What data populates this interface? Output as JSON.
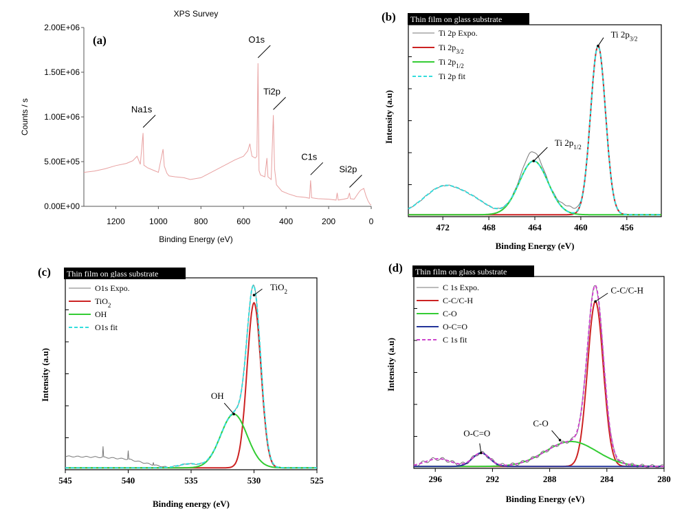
{
  "chart_data": [
    {
      "id": "a",
      "type": "line",
      "panel_label": "(a)",
      "title": "XPS Survey",
      "xlabel": "Binding Energy (eV)",
      "ylabel": "Counts / s",
      "xlim": [
        1350,
        0
      ],
      "ylim": [
        0,
        2000000
      ],
      "x_ticks": [
        1200,
        1000,
        800,
        600,
        400,
        200,
        0
      ],
      "y_ticks": [
        0,
        500000,
        1000000,
        1500000,
        2000000
      ],
      "y_tick_labels": [
        "0.00E+00",
        "5.00E+05",
        "1.00E+06",
        "1.50E+06",
        "2.00E+06"
      ],
      "series_color": "#e8a0a0",
      "series": [
        {
          "name": "Survey",
          "points": [
            [
              1350,
              380000
            ],
            [
              1300,
              395000
            ],
            [
              1250,
              420000
            ],
            [
              1200,
              455000
            ],
            [
              1150,
              480000
            ],
            [
              1120,
              510000
            ],
            [
              1100,
              560000
            ],
            [
              1085,
              470000
            ],
            [
              1072,
              820000
            ],
            [
              1068,
              460000
            ],
            [
              1050,
              430000
            ],
            [
              1020,
              400000
            ],
            [
              1000,
              380000
            ],
            [
              978,
              640000
            ],
            [
              972,
              450000
            ],
            [
              960,
              370000
            ],
            [
              950,
              340000
            ],
            [
              920,
              330000
            ],
            [
              880,
              320000
            ],
            [
              850,
              300000
            ],
            [
              800,
              320000
            ],
            [
              760,
              370000
            ],
            [
              720,
              420000
            ],
            [
              680,
              470000
            ],
            [
              640,
              520000
            ],
            [
              600,
              560000
            ],
            [
              580,
              620000
            ],
            [
              570,
              700000
            ],
            [
              565,
              620000
            ],
            [
              560,
              560000
            ],
            [
              545,
              540000
            ],
            [
              537,
              560000
            ],
            [
              532,
              1600000
            ],
            [
              527,
              400000
            ],
            [
              520,
              350000
            ],
            [
              500,
              330000
            ],
            [
              490,
              540000
            ],
            [
              485,
              330000
            ],
            [
              470,
              300000
            ],
            [
              460,
              1020000
            ],
            [
              454,
              420000
            ],
            [
              445,
              240000
            ],
            [
              420,
              170000
            ],
            [
              390,
              140000
            ],
            [
              350,
              110000
            ],
            [
              310,
              100000
            ],
            [
              290,
              90000
            ],
            [
              285,
              290000
            ],
            [
              280,
              95000
            ],
            [
              250,
              85000
            ],
            [
              200,
              80000
            ],
            [
              165,
              70000
            ],
            [
              160,
              150000
            ],
            [
              155,
              70000
            ],
            [
              130,
              80000
            ],
            [
              110,
              90000
            ],
            [
              102,
              150000
            ],
            [
              98,
              85000
            ],
            [
              80,
              80000
            ],
            [
              60,
              150000
            ],
            [
              50,
              180000
            ],
            [
              35,
              200000
            ],
            [
              25,
              120000
            ],
            [
              15,
              60000
            ],
            [
              5,
              20000
            ],
            [
              0,
              15000
            ]
          ]
        }
      ],
      "annotations": [
        {
          "label": "Na1s",
          "x": 1072,
          "y": 820000
        },
        {
          "label": "O1s",
          "x": 532,
          "y": 1600000
        },
        {
          "label": "Ti2p",
          "x": 460,
          "y": 1020000
        },
        {
          "label": "C1s",
          "x": 285,
          "y": 290000
        },
        {
          "label": "Si2p",
          "x": 102,
          "y": 150000
        }
      ]
    },
    {
      "id": "b",
      "type": "line",
      "panel_label": "(b)",
      "title": "Thin film on glass substrate",
      "xlabel": "Binding Energy (eV)",
      "ylabel": "Intensity (a.u)",
      "xlim": [
        475,
        453
      ],
      "ylim": [
        0,
        100
      ],
      "x_ticks": [
        472,
        468,
        464,
        460,
        456
      ],
      "legend": [
        {
          "label": "Ti 2p Expo.",
          "sub": "",
          "color": "#777777",
          "dash": false,
          "width": 1
        },
        {
          "label": "Ti 2p",
          "sub": "3/2",
          "color": "#cc2222",
          "dash": false,
          "width": 2
        },
        {
          "label": "Ti 2p",
          "sub": "1/2",
          "color": "#33cc33",
          "dash": false,
          "width": 2
        },
        {
          "label": "Ti 2p fit",
          "sub": "",
          "color": "#33dddd",
          "dash": true,
          "width": 2
        }
      ],
      "baseline": 0,
      "peaks": [
        {
          "name": "Ti 2p3/2",
          "center": 458.5,
          "amplitude": 88,
          "sigma": 0.65,
          "color": "#cc2222",
          "width": 2
        },
        {
          "name": "Ti 2p1/2",
          "center": 464.1,
          "amplitude": 28,
          "sigma": 1.25,
          "color": "#33cc33",
          "width": 2
        }
      ],
      "extra": [
        {
          "center": 471.8,
          "amplitude": 15,
          "sigma": 1.8
        },
        {
          "center": 469.0,
          "amplitude": 4,
          "sigma": 1.2
        }
      ],
      "expo_shoulder": [
        {
          "center": 464.3,
          "amplitude": 5,
          "sigma": 0.7
        },
        {
          "center": 461.0,
          "amplitude": 3,
          "sigma": 0.7
        }
      ],
      "fit_color": "#33dddd",
      "expo_color": "#777777",
      "annotations": [
        {
          "label": "Ti 2p",
          "sub": "3/2",
          "x": 458.5,
          "y": 88
        },
        {
          "label": "Ti 2p",
          "sub": "1/2",
          "x": 464.1,
          "y": 28
        }
      ]
    },
    {
      "id": "c",
      "type": "line",
      "panel_label": "(c)",
      "title": "Thin film on glass substrate",
      "xlabel": "Binding energy (eV)",
      "ylabel": "Intensity (a.u)",
      "xlim": [
        545,
        525
      ],
      "ylim": [
        0,
        100
      ],
      "x_ticks": [
        545,
        540,
        535,
        530,
        525
      ],
      "legend": [
        {
          "label": "O1s Expo.",
          "sub": "",
          "color": "#777777",
          "dash": false,
          "width": 1
        },
        {
          "label": "TiO",
          "sub": "2",
          "color": "#cc2222",
          "dash": false,
          "width": 2
        },
        {
          "label": "OH",
          "sub": "",
          "color": "#33cc33",
          "dash": false,
          "width": 2
        },
        {
          "label": "O1s fit",
          "sub": "",
          "color": "#33dddd",
          "dash": true,
          "width": 2
        }
      ],
      "baseline": 0,
      "peaks": [
        {
          "name": "TiO2",
          "center": 530.0,
          "amplitude": 86,
          "sigma": 0.55,
          "color": "#cc2222",
          "width": 2
        },
        {
          "name": "OH",
          "center": 531.6,
          "amplitude": 28,
          "sigma": 1.05,
          "color": "#33cc33",
          "width": 2
        }
      ],
      "extra": [
        {
          "center": 535.2,
          "amplitude": 2,
          "sigma": 0.8
        }
      ],
      "expo_tail": [
        [
          545,
          6
        ],
        [
          542,
          5.5
        ],
        [
          540,
          4.5
        ],
        [
          538,
          1.5
        ],
        [
          537,
          0.3
        ]
      ],
      "fit_color": "#33dddd",
      "expo_color": "#777777",
      "annotations": [
        {
          "label": "TiO",
          "sub": "2",
          "x": 530.0,
          "y": 90
        },
        {
          "label": "OH",
          "sub": "",
          "x": 531.6,
          "y": 28
        }
      ]
    },
    {
      "id": "d",
      "type": "line",
      "panel_label": "(d)",
      "title": "Thin film on glass substrate",
      "xlabel": "Binding Energy (eV)",
      "ylabel": "Intensity (a.u)",
      "xlim": [
        297.5,
        280
      ],
      "ylim": [
        0,
        100
      ],
      "x_ticks": [
        296,
        292,
        288,
        284,
        280
      ],
      "legend": [
        {
          "label": "C 1s Expo.",
          "sub": "",
          "color": "#777777",
          "dash": false,
          "width": 1
        },
        {
          "label": "C-C/C-H",
          "sub": "",
          "color": "#cc2222",
          "dash": false,
          "width": 2
        },
        {
          "label": "C-O",
          "sub": "",
          "color": "#33cc33",
          "dash": false,
          "width": 2
        },
        {
          "label": "O-C=O",
          "sub": "",
          "color": "#223399",
          "dash": false,
          "width": 2
        },
        {
          "label": "C 1s fit",
          "sub": "",
          "color": "#cc44cc",
          "dash": true,
          "width": 2
        }
      ],
      "baseline": 0,
      "peaks": [
        {
          "name": "C-C/C-H",
          "center": 284.8,
          "amplitude": 86,
          "sigma": 0.55,
          "color": "#cc2222",
          "width": 2
        },
        {
          "name": "C-O",
          "center": 286.5,
          "amplitude": 13,
          "sigma": 1.8,
          "color": "#33cc33",
          "width": 2
        },
        {
          "name": "O-C=O",
          "center": 292.8,
          "amplitude": 7,
          "sigma": 0.6,
          "color": "#223399",
          "width": 2
        }
      ],
      "extra": [
        {
          "center": 295.8,
          "amplitude": 4,
          "sigma": 0.9
        }
      ],
      "fit_color": "#cc44cc",
      "expo_color": "#777777",
      "annotations": [
        {
          "label": "C-C/C-H",
          "sub": "",
          "x": 284.8,
          "y": 86
        },
        {
          "label": "C-O",
          "sub": "",
          "x": 286.8,
          "y": 13
        },
        {
          "label": "O-C=O",
          "sub": "",
          "x": 292.8,
          "y": 7
        }
      ]
    }
  ]
}
